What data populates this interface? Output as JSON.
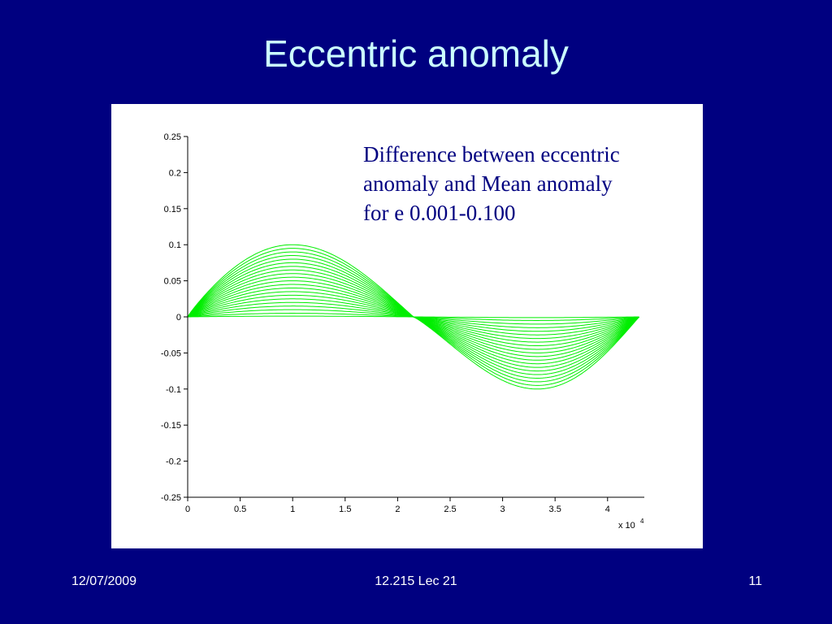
{
  "slide": {
    "title": "Eccentric anomaly",
    "footer_date": "12/07/2009",
    "footer_center": "12.215 Lec 21",
    "footer_page": "11"
  },
  "chart_data": {
    "type": "line",
    "title": "",
    "xlabel": "",
    "ylabel": "",
    "x_multiplier_label": "x 10",
    "x_multiplier_exponent": "4",
    "xlim": [
      0,
      43500
    ],
    "ylim": [
      -0.25,
      0.25
    ],
    "grid": false,
    "line_color": "#00ee00",
    "x_ticks": [
      0,
      5000,
      10000,
      15000,
      20000,
      25000,
      30000,
      35000,
      40000
    ],
    "x_tick_labels": [
      "0",
      "0.5",
      "1",
      "1.5",
      "2",
      "2.5",
      "3",
      "3.5",
      "4"
    ],
    "y_ticks": [
      0.25,
      0.2,
      0.15,
      0.1,
      0.05,
      0,
      -0.05,
      -0.1,
      -0.15,
      -0.2,
      -0.25
    ],
    "y_tick_labels": [
      "0.25",
      "0.2",
      "0.15",
      "0.1",
      "0.05",
      "0",
      "-0.05",
      "-0.1",
      "-0.15",
      "-0.2",
      "-0.25"
    ],
    "annotation_lines": [
      "Difference between eccentric",
      "anomaly and Mean anomaly",
      "for e 0.001-0.100"
    ],
    "x_end": 43000,
    "peak_x": 10000,
    "zero_crossing_x": 21500,
    "trough_x": 33300,
    "eccentricities": [
      0.001,
      0.005,
      0.01,
      0.015,
      0.02,
      0.025,
      0.03,
      0.035,
      0.04,
      0.045,
      0.05,
      0.055,
      0.06,
      0.065,
      0.07,
      0.075,
      0.08,
      0.085,
      0.09,
      0.095,
      0.1
    ],
    "series_peaks": [
      0.001,
      0.005,
      0.01,
      0.015,
      0.02,
      0.025,
      0.03,
      0.035,
      0.04,
      0.045,
      0.05,
      0.055,
      0.06,
      0.065,
      0.07,
      0.075,
      0.08,
      0.085,
      0.09,
      0.095,
      0.1
    ]
  }
}
